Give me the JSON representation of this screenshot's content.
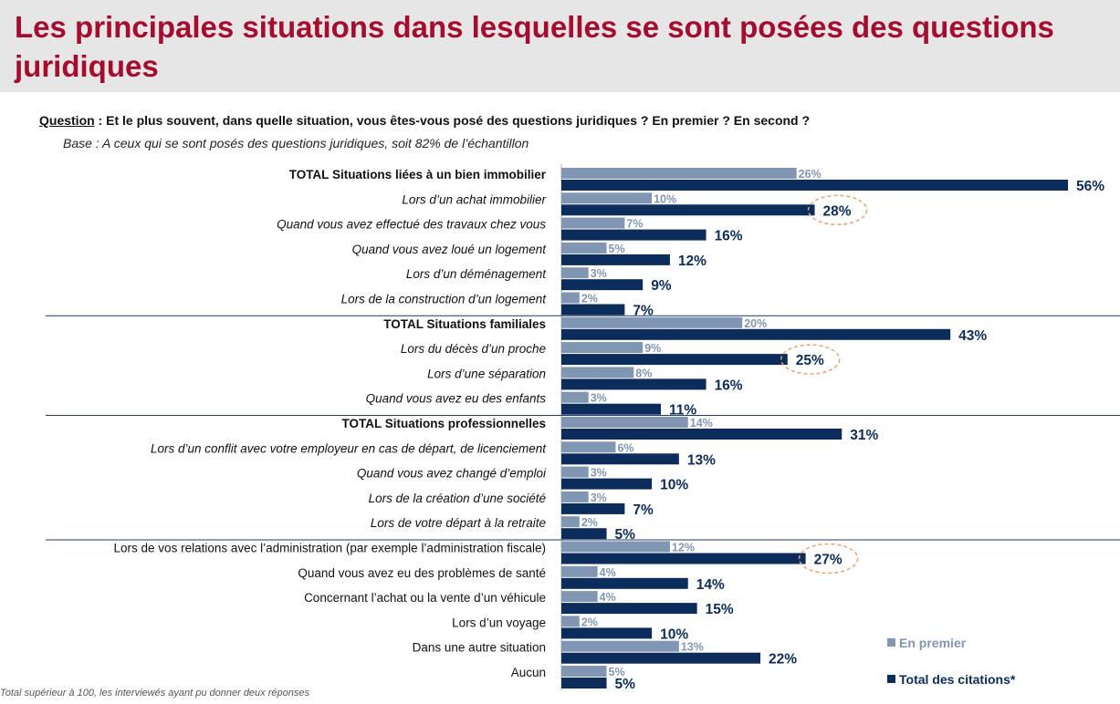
{
  "title": "Les principales situations dans lesquelles se sont posées des questions juridiques",
  "question_label": "Question",
  "question_text": " : Et le plus souvent, dans quelle situation, vous êtes-vous posé des questions juridiques ? En premier ? En second ?",
  "base": "Base : A ceux qui se sont posés des questions juridiques, soit 82% de l’échantillon",
  "footnote": "Total supérieur à 100, les interviewés ayant pu donner deux réponses",
  "legend": {
    "first": "En premier",
    "total": "Total des citations*"
  },
  "colors": {
    "first": "#8096b3",
    "total": "#0c2c5c",
    "title": "#a60c2e",
    "highlight_circle": "#f0a070"
  },
  "chart_data": {
    "type": "bar",
    "orientation": "horizontal",
    "unit": "%",
    "categories": [
      "TOTAL Situations liées à un bien immobilier",
      "Lors d’un achat immobilier",
      "Quand vous avez effectué des travaux chez vous",
      "Quand vous avez loué un logement",
      "Lors d’un déménagement",
      "Lors de la construction d’un logement",
      "TOTAL Situations familiales",
      "Lors du décès d’un proche",
      "Lors d’une séparation",
      "Quand vous avez eu des enfants",
      "TOTAL Situations professionnelles",
      "Lors d’un conflit avec votre employeur en cas de départ, de licenciement",
      "Quand vous avez changé d’emploi",
      "Lors de la création d’une société",
      "Lors de votre départ à la retraite",
      "Lors de vos relations avec l’administration (par exemple l’administration fiscale)",
      "Quand vous avez eu des problèmes de santé",
      "Concernant l’achat ou la vente d’un véhicule",
      "Lors d’un voyage",
      "Dans une autre situation",
      "Aucun"
    ],
    "category_style": [
      "total",
      "italic",
      "italic",
      "italic",
      "italic",
      "italic",
      "total",
      "italic",
      "italic",
      "italic",
      "total",
      "italic",
      "italic",
      "italic",
      "italic",
      "normal",
      "normal",
      "normal",
      "normal",
      "normal",
      "normal"
    ],
    "series": [
      {
        "name": "En premier",
        "values": [
          26,
          10,
          7,
          5,
          3,
          2,
          20,
          9,
          8,
          3,
          14,
          6,
          3,
          3,
          2,
          12,
          4,
          4,
          2,
          13,
          5
        ]
      },
      {
        "name": "Total des citations*",
        "values": [
          56,
          28,
          16,
          12,
          9,
          7,
          43,
          25,
          16,
          11,
          31,
          13,
          10,
          7,
          5,
          27,
          14,
          15,
          10,
          22,
          5
        ]
      }
    ],
    "value_labels_first": [
      "26%",
      "10%",
      "7%",
      "5%",
      "3%",
      "2%",
      "20%",
      "9%",
      "8%",
      "3%",
      "14%",
      "6%",
      "3%",
      "3%",
      "2%",
      "12%",
      "4%",
      "4%",
      "2%",
      "13%",
      "5%"
    ],
    "value_labels_total": [
      "56%",
      "28%",
      "16%",
      "12%",
      "9%",
      "7%",
      "43%",
      "25%",
      "16%",
      "11%",
      "31%",
      "13%",
      "10%",
      "7%",
      "5%",
      "27%",
      "14%",
      "15%",
      "10%",
      "22%",
      "5%"
    ],
    "group_separators_after": [
      5,
      9,
      14
    ],
    "highlighted_total_indices": [
      1,
      7,
      15
    ],
    "legend_position": "bottom-right",
    "grid": false
  }
}
